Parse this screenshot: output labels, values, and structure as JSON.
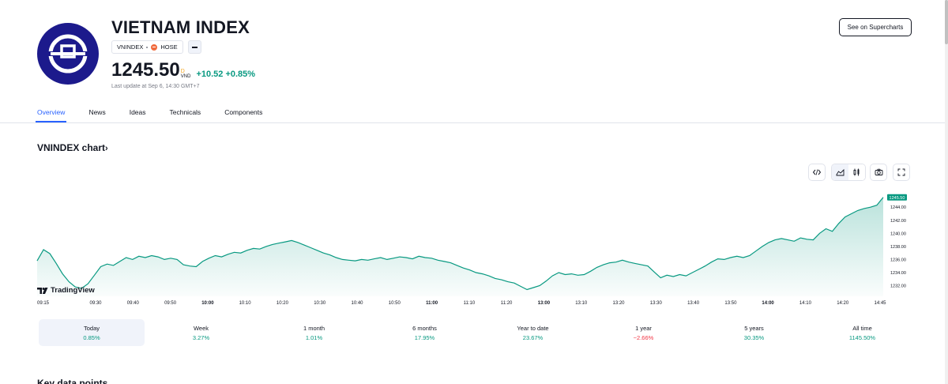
{
  "header": {
    "title": "VIETNAM INDEX",
    "symbol_tag": "VNINDEX",
    "exchange_tag": "HOSE",
    "price": "1245.50",
    "price_marker": "D",
    "currency": "VND",
    "change": "+10.52 +0.85%",
    "last_update": "Last update at Sep 6, 14:30 GMT+7",
    "supercharts_label": "See on Supercharts"
  },
  "tabs": [
    {
      "label": "Overview",
      "active": true
    },
    {
      "label": "News",
      "active": false
    },
    {
      "label": "Ideas",
      "active": false
    },
    {
      "label": "Technicals",
      "active": false
    },
    {
      "label": "Components",
      "active": false
    }
  ],
  "chart_section": {
    "heading": "VNINDEX chart",
    "toolbar_icons": [
      "embed-icon",
      "area-chart-icon",
      "candles-icon",
      "camera-icon",
      "fullscreen-icon"
    ],
    "tv_logo_text": "TradingView",
    "colors": {
      "line": "#089981",
      "fill": "#089981",
      "last_price_bg": "#089981"
    }
  },
  "chart_data": {
    "type": "area",
    "title": "",
    "xlabel": "",
    "ylabel": "",
    "x_ticks": [
      "09:15",
      "09:30",
      "09:40",
      "09:50",
      "10:00",
      "10:10",
      "10:20",
      "10:30",
      "10:40",
      "10:50",
      "11:00",
      "11:10",
      "11:20",
      "13:00",
      "13:10",
      "13:20",
      "13:30",
      "13:40",
      "13:50",
      "14:00",
      "14:10",
      "14:20",
      "14:45"
    ],
    "bold_ticks": [
      "10:00",
      "11:00",
      "13:00",
      "14:00"
    ],
    "y_ticks": [
      1232,
      1234,
      1236,
      1238,
      1240,
      1242,
      1244
    ],
    "y_tick_labels": [
      "1232.00",
      "1234.00",
      "1236.00",
      "1238.00",
      "1240.00",
      "1242.00",
      "1244.00"
    ],
    "ylim": [
      1231.1,
      1246.2
    ],
    "last_price": 1245.5,
    "last_price_label": "1245.50",
    "grid": false,
    "series": [
      {
        "values": [
          1235.8,
          1237.5,
          1236.9,
          1235.4,
          1233.8,
          1232.6,
          1231.8,
          1231.6,
          1232.3,
          1233.6,
          1234.9,
          1235.3,
          1235.1,
          1235.7,
          1236.3,
          1236.0,
          1236.5,
          1236.3,
          1236.6,
          1236.4,
          1236.0,
          1236.2,
          1236.0,
          1235.2,
          1235.0,
          1234.9,
          1235.7,
          1236.2,
          1236.6,
          1236.4,
          1236.8,
          1237.1,
          1237.0,
          1237.4,
          1237.7,
          1237.6,
          1238.0,
          1238.3,
          1238.5,
          1238.7,
          1238.9,
          1238.6,
          1238.2,
          1237.8,
          1237.4,
          1237.0,
          1236.7,
          1236.3,
          1236.0,
          1235.9,
          1235.8,
          1236.0,
          1235.9,
          1236.1,
          1236.3,
          1236.0,
          1236.2,
          1236.4,
          1236.3,
          1236.1,
          1236.5,
          1236.3,
          1236.2,
          1235.9,
          1235.7,
          1235.5,
          1235.1,
          1234.7,
          1234.4,
          1234.0,
          1233.8,
          1233.5,
          1233.1,
          1232.9,
          1232.6,
          1232.4,
          1231.9,
          1231.4,
          1231.7,
          1232.0,
          1232.7,
          1233.5,
          1234.0,
          1233.7,
          1233.8,
          1233.6,
          1233.7,
          1234.2,
          1234.8,
          1235.2,
          1235.5,
          1235.6,
          1235.9,
          1235.6,
          1235.4,
          1235.2,
          1235.0,
          1234.1,
          1233.2,
          1233.6,
          1233.4,
          1233.7,
          1233.5,
          1234.0,
          1234.5,
          1235.0,
          1235.6,
          1236.1,
          1236.0,
          1236.3,
          1236.5,
          1236.3,
          1236.6,
          1237.3,
          1238.0,
          1238.6,
          1239.0,
          1239.2,
          1239.0,
          1238.8,
          1239.3,
          1239.1,
          1239.0,
          1240.0,
          1240.7,
          1240.3,
          1241.5,
          1242.5,
          1243.0,
          1243.5,
          1243.8,
          1244.0,
          1244.3,
          1245.5
        ]
      }
    ]
  },
  "ranges": [
    {
      "label": "Today",
      "value": "0.85%",
      "trend": "pos",
      "active": true
    },
    {
      "label": "Week",
      "value": "3.27%",
      "trend": "pos",
      "active": false
    },
    {
      "label": "1 month",
      "value": "1.01%",
      "trend": "pos",
      "active": false
    },
    {
      "label": "6 months",
      "value": "17.95%",
      "trend": "pos",
      "active": false
    },
    {
      "label": "Year to date",
      "value": "23.67%",
      "trend": "pos",
      "active": false
    },
    {
      "label": "1 year",
      "value": "−2.66%",
      "trend": "neg",
      "active": false
    },
    {
      "label": "5 years",
      "value": "30.35%",
      "trend": "pos",
      "active": false
    },
    {
      "label": "All time",
      "value": "1145.50%",
      "trend": "pos",
      "active": false
    }
  ],
  "key_data_heading": "Key data points"
}
